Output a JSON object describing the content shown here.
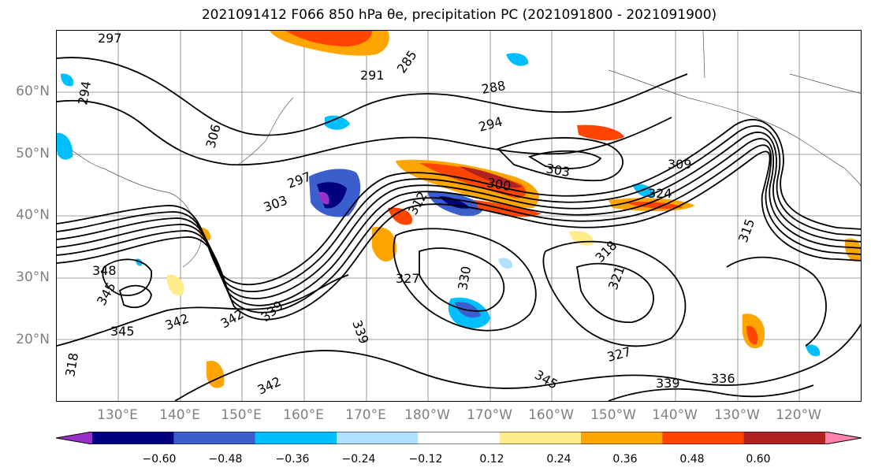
{
  "title": "2021091412 F066 850 hPa θe, precipitation PC (2021091800 - 2021091900)",
  "map": {
    "lat_labels": [
      "60°N",
      "50°N",
      "40°N",
      "30°N",
      "20°N"
    ],
    "lon_labels": [
      "130°E",
      "140°E",
      "150°E",
      "160°E",
      "170°E",
      "180°W",
      "170°W",
      "160°W",
      "150°W",
      "140°W",
      "130°W",
      "120°W"
    ],
    "contour_labels": [
      "297",
      "294",
      "291",
      "285",
      "288",
      "294",
      "306",
      "297",
      "303",
      "300",
      "303",
      "309",
      "324",
      "315",
      "312",
      "318",
      "321",
      "327",
      "330",
      "348",
      "345",
      "345",
      "342",
      "339",
      "339",
      "345",
      "342",
      "339",
      "342",
      "336",
      "327",
      "318"
    ],
    "line_color": "#000000",
    "grid_color": "#808080"
  },
  "colorbar": {
    "ticks": [
      "−0.60",
      "−0.48",
      "−0.36",
      "−0.24",
      "−0.12",
      "0.12",
      "0.24",
      "0.36",
      "0.48",
      "0.60"
    ],
    "colors": [
      "#9932cc",
      "#000080",
      "#3a5fcd",
      "#00bfff",
      "#b0e2ff",
      "#ffffff",
      "#ffec8b",
      "#ffa500",
      "#ff4500",
      "#b22222",
      "#ff82ab"
    ]
  }
}
